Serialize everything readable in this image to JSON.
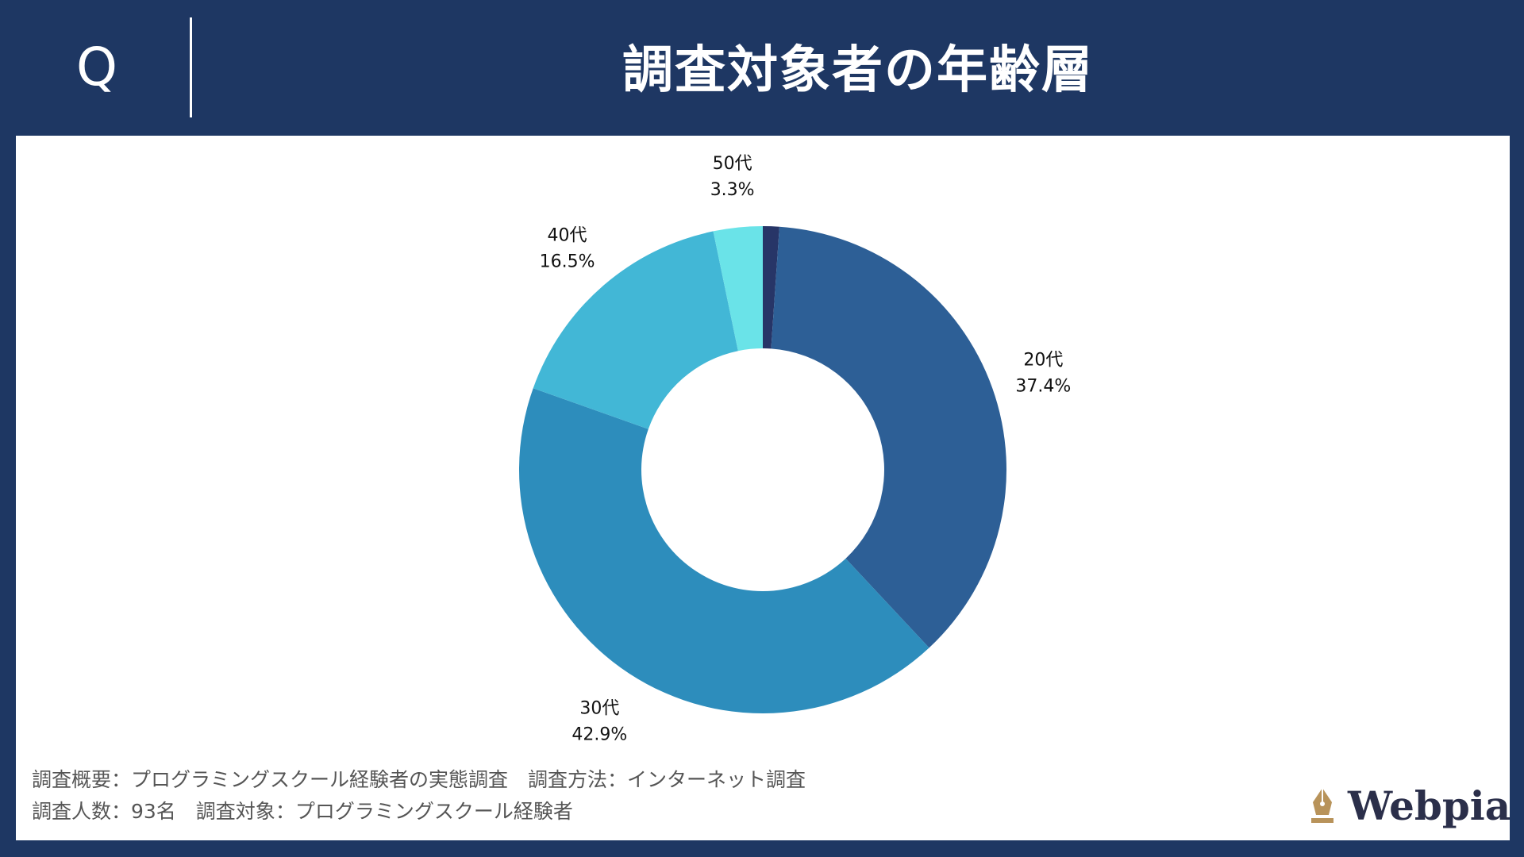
{
  "header": {
    "q_mark": "Q",
    "title": "調査対象者の年齢層"
  },
  "chart_data": {
    "type": "pie",
    "donut": true,
    "title": "",
    "start_angle_deg": 0,
    "direction": "clockwise",
    "series": [
      {
        "label": "",
        "value": 1.1,
        "color": "#273567",
        "percent_text": ""
      },
      {
        "label": "20代",
        "value": 37.4,
        "color": "#2d5f96",
        "percent_text": "37.4%"
      },
      {
        "label": "30代",
        "value": 42.9,
        "color": "#2d8dbc",
        "percent_text": "42.9%"
      },
      {
        "label": "40代",
        "value": 16.5,
        "color": "#42b7d6",
        "percent_text": "16.5%"
      },
      {
        "label": "50代",
        "value": 3.3,
        "color": "#6ae3e8",
        "percent_text": "3.3%"
      }
    ]
  },
  "footer": {
    "line1": "調査概要：プログラミングスクール経験者の実態調査　調査方法：インターネット調査",
    "line2": "調査人数：93名　調査対象：プログラミングスクール経験者"
  },
  "logo": {
    "text": "Webpia",
    "accent_color": "#b8935a"
  }
}
